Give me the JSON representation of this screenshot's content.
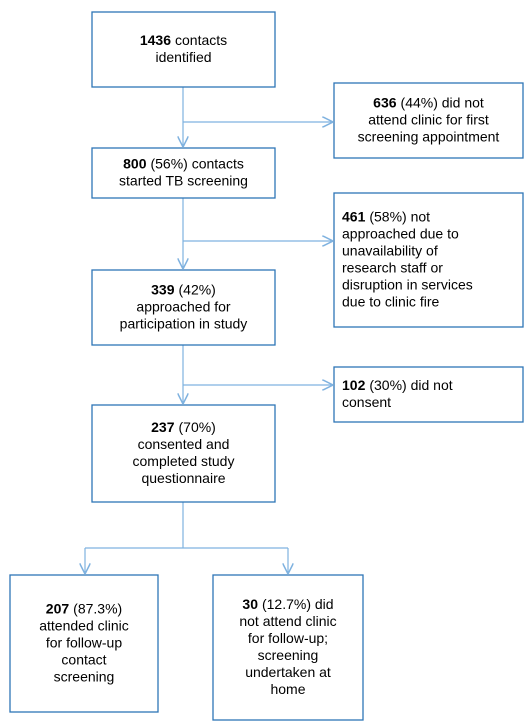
{
  "nodes": [
    {
      "number": "1436",
      "lines": [
        "contacts",
        "identified"
      ]
    },
    {
      "number": "636",
      "lines": [
        "(44%) did not",
        "attend clinic for first",
        "screening appointment"
      ]
    },
    {
      "number": "800",
      "lines": [
        "(56%) contacts",
        "started TB screening"
      ]
    },
    {
      "number": "461",
      "lines": [
        "(58%) not",
        "approached due to",
        "unavailability of",
        "research staff or",
        "disruption in services",
        "due to clinic fire"
      ]
    },
    {
      "number": "339",
      "lines": [
        "(42%)",
        "approached for",
        "participation in study"
      ]
    },
    {
      "number": "102",
      "lines": [
        "(30%) did not",
        "consent"
      ]
    },
    {
      "number": "237",
      "lines": [
        "(70%)",
        "consented and",
        "completed study",
        "questionnaire"
      ]
    },
    {
      "number": "207",
      "lines": [
        "(87.3%)",
        "attended clinic",
        "for follow-up",
        "contact",
        "screening"
      ]
    },
    {
      "number": "30",
      "lines": [
        "(12.7%) did",
        "not attend clinic",
        "for follow-up;",
        "screening",
        "undertaken at",
        "home"
      ]
    }
  ]
}
